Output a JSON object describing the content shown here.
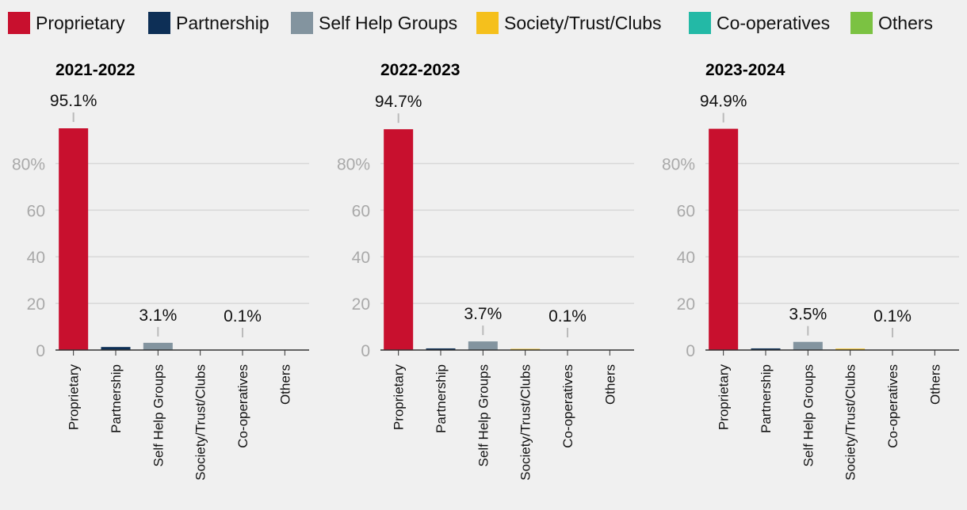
{
  "chart_data": {
    "type": "bar",
    "categories": [
      "Proprietary",
      "Partnership",
      "Self Help Groups",
      "Society/Trust/Clubs",
      "Co-operatives",
      "Others"
    ],
    "colors": [
      "#c8102e",
      "#0d2f56",
      "#83949f",
      "#f5c01c",
      "#23b9a6",
      "#7bc242"
    ],
    "ylim": [
      0,
      100
    ],
    "yticks": [
      {
        "value": 0,
        "label": "0"
      },
      {
        "value": 20,
        "label": "20"
      },
      {
        "value": 40,
        "label": "40"
      },
      {
        "value": 60,
        "label": "60"
      },
      {
        "value": 80,
        "label": "80%"
      }
    ],
    "panels": [
      {
        "title": "2021-2022",
        "values": [
          95.1,
          1.3,
          3.1,
          0.0,
          0.1,
          0.0
        ],
        "labels": [
          "95.1%",
          null,
          "3.1%",
          null,
          "0.1%",
          null
        ]
      },
      {
        "title": "2022-2023",
        "values": [
          94.7,
          0.7,
          3.7,
          0.5,
          0.1,
          0.0
        ],
        "labels": [
          "94.7%",
          null,
          "3.7%",
          null,
          "0.1%",
          null
        ]
      },
      {
        "title": "2023-2024",
        "values": [
          94.9,
          0.7,
          3.5,
          0.6,
          0.1,
          0.0
        ],
        "labels": [
          "94.9%",
          null,
          "3.5%",
          null,
          "0.1%",
          null
        ]
      }
    ]
  }
}
